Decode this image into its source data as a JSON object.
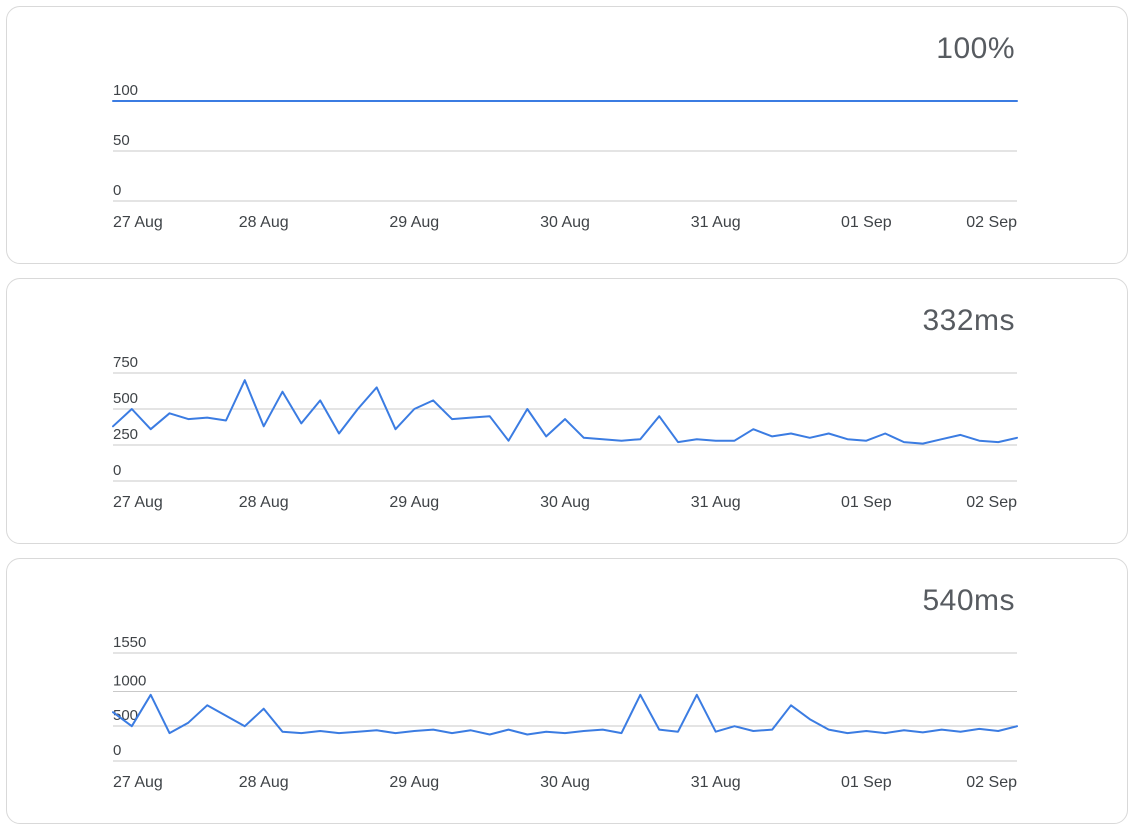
{
  "colors": {
    "accent": "#3b7ce2",
    "grid": "#c9c9c9",
    "axis_text": "#3f4347",
    "metric_text": "#575b60",
    "panel_border": "#d9d9d9"
  },
  "chart_data": [
    {
      "type": "line",
      "metric": "100%",
      "title": "100%",
      "x_labels": [
        "27 Aug",
        "28 Aug",
        "29 Aug",
        "30 Aug",
        "31 Aug",
        "01 Sep",
        "02 Sep"
      ],
      "yticks": [
        0,
        50,
        100
      ],
      "ylim": [
        0,
        100
      ],
      "grid": true,
      "legend": "none",
      "values": [
        100,
        100,
        100,
        100,
        100,
        100,
        100
      ]
    },
    {
      "type": "line",
      "metric": "332ms",
      "title": "332ms",
      "x_labels": [
        "27 Aug",
        "28 Aug",
        "29 Aug",
        "30 Aug",
        "31 Aug",
        "01 Sep",
        "02 Sep"
      ],
      "yticks": [
        0,
        250,
        500,
        750
      ],
      "ylim": [
        0,
        750
      ],
      "grid": true,
      "legend": "none",
      "values": [
        380,
        500,
        360,
        470,
        430,
        440,
        420,
        700,
        380,
        620,
        400,
        560,
        330,
        500,
        650,
        360,
        500,
        560,
        430,
        440,
        450,
        280,
        500,
        310,
        430,
        300,
        290,
        280,
        290,
        450,
        270,
        290,
        280,
        280,
        360,
        310,
        330,
        300,
        330,
        290,
        280,
        330,
        270,
        260,
        290,
        320,
        280,
        270,
        300
      ]
    },
    {
      "type": "line",
      "metric": "540ms",
      "title": "540ms",
      "x_labels": [
        "27 Aug",
        "28 Aug",
        "29 Aug",
        "30 Aug",
        "31 Aug",
        "01 Sep",
        "02 Sep"
      ],
      "yticks": [
        0,
        500,
        1000,
        1550
      ],
      "ylim": [
        0,
        1550
      ],
      "grid": true,
      "legend": "none",
      "values": [
        700,
        500,
        950,
        400,
        550,
        800,
        650,
        500,
        750,
        420,
        400,
        430,
        400,
        420,
        440,
        400,
        430,
        450,
        400,
        440,
        380,
        450,
        380,
        420,
        400,
        430,
        450,
        400,
        950,
        450,
        420,
        950,
        420,
        500,
        430,
        450,
        800,
        600,
        450,
        400,
        430,
        400,
        440,
        410,
        450,
        420,
        460,
        430,
        500
      ]
    }
  ]
}
